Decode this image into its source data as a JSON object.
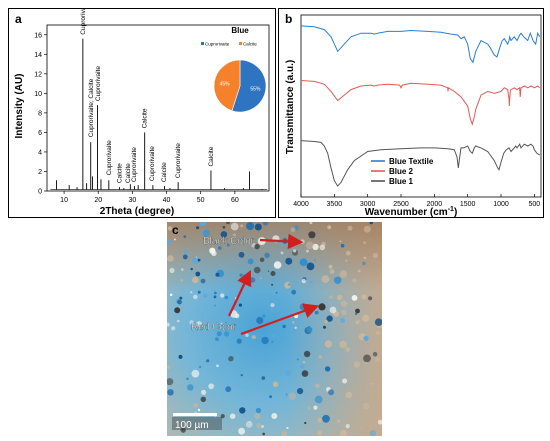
{
  "panels": {
    "a": {
      "letter": "a",
      "chart_data": {
        "type": "line",
        "xlabel": "2Theta (degree)",
        "ylabel": "Intensity (AU)",
        "xlim": [
          5,
          70
        ],
        "ylim": [
          0,
          17
        ],
        "x_ticks": [
          10,
          20,
          30,
          40,
          50,
          60
        ],
        "y_ticks": [
          0,
          2,
          4,
          6,
          8,
          10,
          12,
          14,
          16
        ],
        "peaks": [
          {
            "x": 7.8,
            "y": 1.1
          },
          {
            "x": 11.5,
            "y": 0.6
          },
          {
            "x": 13.8,
            "y": 0.4
          },
          {
            "x": 15.5,
            "y": 15.6
          },
          {
            "x": 16.6,
            "y": 0.8
          },
          {
            "x": 17.8,
            "y": 5.0
          },
          {
            "x": 18.3,
            "y": 1.5
          },
          {
            "x": 19.8,
            "y": 8.8
          },
          {
            "x": 20.8,
            "y": 1.2
          },
          {
            "x": 23.1,
            "y": 1.1
          },
          {
            "x": 26.2,
            "y": 0.4
          },
          {
            "x": 27.5,
            "y": 0.3
          },
          {
            "x": 29.4,
            "y": 0.7
          },
          {
            "x": 30.6,
            "y": 0.5
          },
          {
            "x": 31.7,
            "y": 0.6
          },
          {
            "x": 33.6,
            "y": 6.0
          },
          {
            "x": 36.0,
            "y": 0.6
          },
          {
            "x": 39.4,
            "y": 0.5
          },
          {
            "x": 41.0,
            "y": 0.3
          },
          {
            "x": 43.4,
            "y": 0.9
          },
          {
            "x": 53.0,
            "y": 2.1
          },
          {
            "x": 57.0,
            "y": 0.3
          },
          {
            "x": 62.5,
            "y": 0.3
          },
          {
            "x": 64.3,
            "y": 2.0
          },
          {
            "x": 68.0,
            "y": 0.2
          }
        ],
        "annotations": [
          {
            "text": "Cuprorivaite",
            "x": 15.5,
            "y": 15.7
          },
          {
            "text": "Cuprorivaite; Calcite",
            "x": 17.9,
            "y": 5.2
          },
          {
            "text": "Cuprorivaite",
            "x": 19.9,
            "y": 8.9
          },
          {
            "text": "Cuprorivaite",
            "x": 23.1,
            "y": 1.3
          },
          {
            "text": "Calcite",
            "x": 26.2,
            "y": 0.5
          },
          {
            "text": "Calcite",
            "x": 28.7,
            "y": 0.5
          },
          {
            "text": "Cuprorivaite",
            "x": 30.4,
            "y": 0.6
          },
          {
            "text": "Calcite",
            "x": 33.6,
            "y": 6.1
          },
          {
            "text": "Cuprorivaite",
            "x": 35.8,
            "y": 0.7
          },
          {
            "text": "Calcite",
            "x": 39.3,
            "y": 0.6
          },
          {
            "text": "Cuprorivaite",
            "x": 43.4,
            "y": 1.0
          },
          {
            "text": "Calcite",
            "x": 53.0,
            "y": 2.2
          }
        ],
        "inset_pie": {
          "type": "pie",
          "title": "Blue",
          "legend": [
            "Cuprorivaite",
            "Calcite"
          ],
          "values": [
            55,
            45
          ],
          "labels": [
            "55%",
            "45%"
          ],
          "colors": [
            "#2f74c0",
            "#f5822a"
          ]
        }
      }
    },
    "b": {
      "letter": "b",
      "chart_data": {
        "type": "line",
        "xlabel": "Wavenumber (cm",
        "xlabel_sup": "-1",
        "xlabel_close": ")",
        "ylabel": "Transmittance (a.u.)",
        "xlim": [
          4000,
          400
        ],
        "x_ticks": [
          4000,
          3500,
          3000,
          2500,
          2000,
          1500,
          1000,
          500
        ],
        "legend_position": "bottom-left",
        "series": [
          {
            "name": "Blue Textile",
            "color": "#2a7fd0",
            "x": [
              4000,
              3800,
              3650,
              3550,
              3450,
              3350,
              3250,
              3100,
              2950,
              2900,
              2850,
              2700,
              2500,
              2350,
              2100,
              1900,
              1750,
              1650,
              1600,
              1550,
              1500,
              1460,
              1420,
              1380,
              1300,
              1200,
              1160,
              1100,
              1060,
              1020,
              980,
              950,
              900,
              880,
              870,
              850,
              800,
              760,
              720,
              700,
              660,
              600,
              560,
              520,
              480,
              450,
              420
            ],
            "y": [
              0.94,
              0.935,
              0.92,
              0.88,
              0.8,
              0.84,
              0.88,
              0.9,
              0.9,
              0.895,
              0.9,
              0.91,
              0.91,
              0.915,
              0.91,
              0.905,
              0.895,
              0.89,
              0.87,
              0.88,
              0.84,
              0.76,
              0.74,
              0.8,
              0.86,
              0.84,
              0.82,
              0.78,
              0.77,
              0.82,
              0.86,
              0.87,
              0.84,
              0.86,
              0.88,
              0.86,
              0.88,
              0.86,
              0.89,
              0.9,
              0.88,
              0.86,
              0.9,
              0.86,
              0.84,
              0.9,
              0.88
            ]
          },
          {
            "name": "Blue 2",
            "color": "#e05a5a",
            "x": [
              4000,
              3800,
              3650,
              3550,
              3450,
              3350,
              3250,
              3100,
              2950,
              2900,
              2850,
              2700,
              2520,
              2500,
              2480,
              2350,
              2100,
              1900,
              1800,
              1795,
              1790,
              1700,
              1600,
              1500,
              1460,
              1430,
              1400,
              1380,
              1300,
              1200,
              1100,
              1000,
              950,
              900,
              880,
              876,
              870,
              860,
              850,
              800,
              760,
              720,
              712,
              700,
              650,
              600,
              550,
              500,
              450,
              420
            ],
            "y": [
              0.64,
              0.635,
              0.62,
              0.58,
              0.53,
              0.56,
              0.59,
              0.61,
              0.615,
              0.61,
              0.615,
              0.62,
              0.615,
              0.6,
              0.615,
              0.625,
              0.62,
              0.615,
              0.6,
              0.58,
              0.6,
              0.58,
              0.55,
              0.5,
              0.43,
              0.4,
              0.44,
              0.48,
              0.56,
              0.58,
              0.57,
              0.58,
              0.6,
              0.59,
              0.54,
              0.5,
              0.54,
              0.58,
              0.59,
              0.6,
              0.59,
              0.6,
              0.55,
              0.6,
              0.61,
              0.6,
              0.61,
              0.6,
              0.61,
              0.6
            ]
          },
          {
            "name": "Blue 1",
            "color": "#555555",
            "x": [
              4000,
              3800,
              3700,
              3650,
              3600,
              3550,
              3500,
              3450,
              3400,
              3300,
              3200,
              3000,
              2800,
              2500,
              2200,
              2000,
              1800,
              1700,
              1660,
              1640,
              1620,
              1600,
              1560,
              1500,
              1460,
              1430,
              1400,
              1380,
              1300,
              1200,
              1100,
              1050,
              1030,
              1000,
              960,
              920,
              880,
              850,
              800,
              780,
              760,
              720,
              700,
              650,
              600,
              550,
              520,
              500,
              460,
              420
            ],
            "y": [
              0.31,
              0.305,
              0.3,
              0.28,
              0.24,
              0.16,
              0.09,
              0.06,
              0.08,
              0.15,
              0.2,
              0.25,
              0.26,
              0.265,
              0.27,
              0.27,
              0.265,
              0.26,
              0.22,
              0.16,
              0.22,
              0.27,
              0.27,
              0.28,
              0.25,
              0.24,
              0.27,
              0.28,
              0.27,
              0.25,
              0.2,
              0.16,
              0.15,
              0.19,
              0.24,
              0.26,
              0.27,
              0.25,
              0.27,
              0.28,
              0.27,
              0.29,
              0.27,
              0.29,
              0.28,
              0.29,
              0.28,
              0.26,
              0.24,
              0.23
            ]
          }
        ]
      }
    },
    "c": {
      "letter": "c",
      "labels": {
        "black": "Black Color",
        "red": "Red Color"
      },
      "scale_bar": "100 µm",
      "colors": {
        "arrow": "#d11f1f",
        "label_text": "#ffffff",
        "background": "#7fb3cf"
      }
    }
  }
}
